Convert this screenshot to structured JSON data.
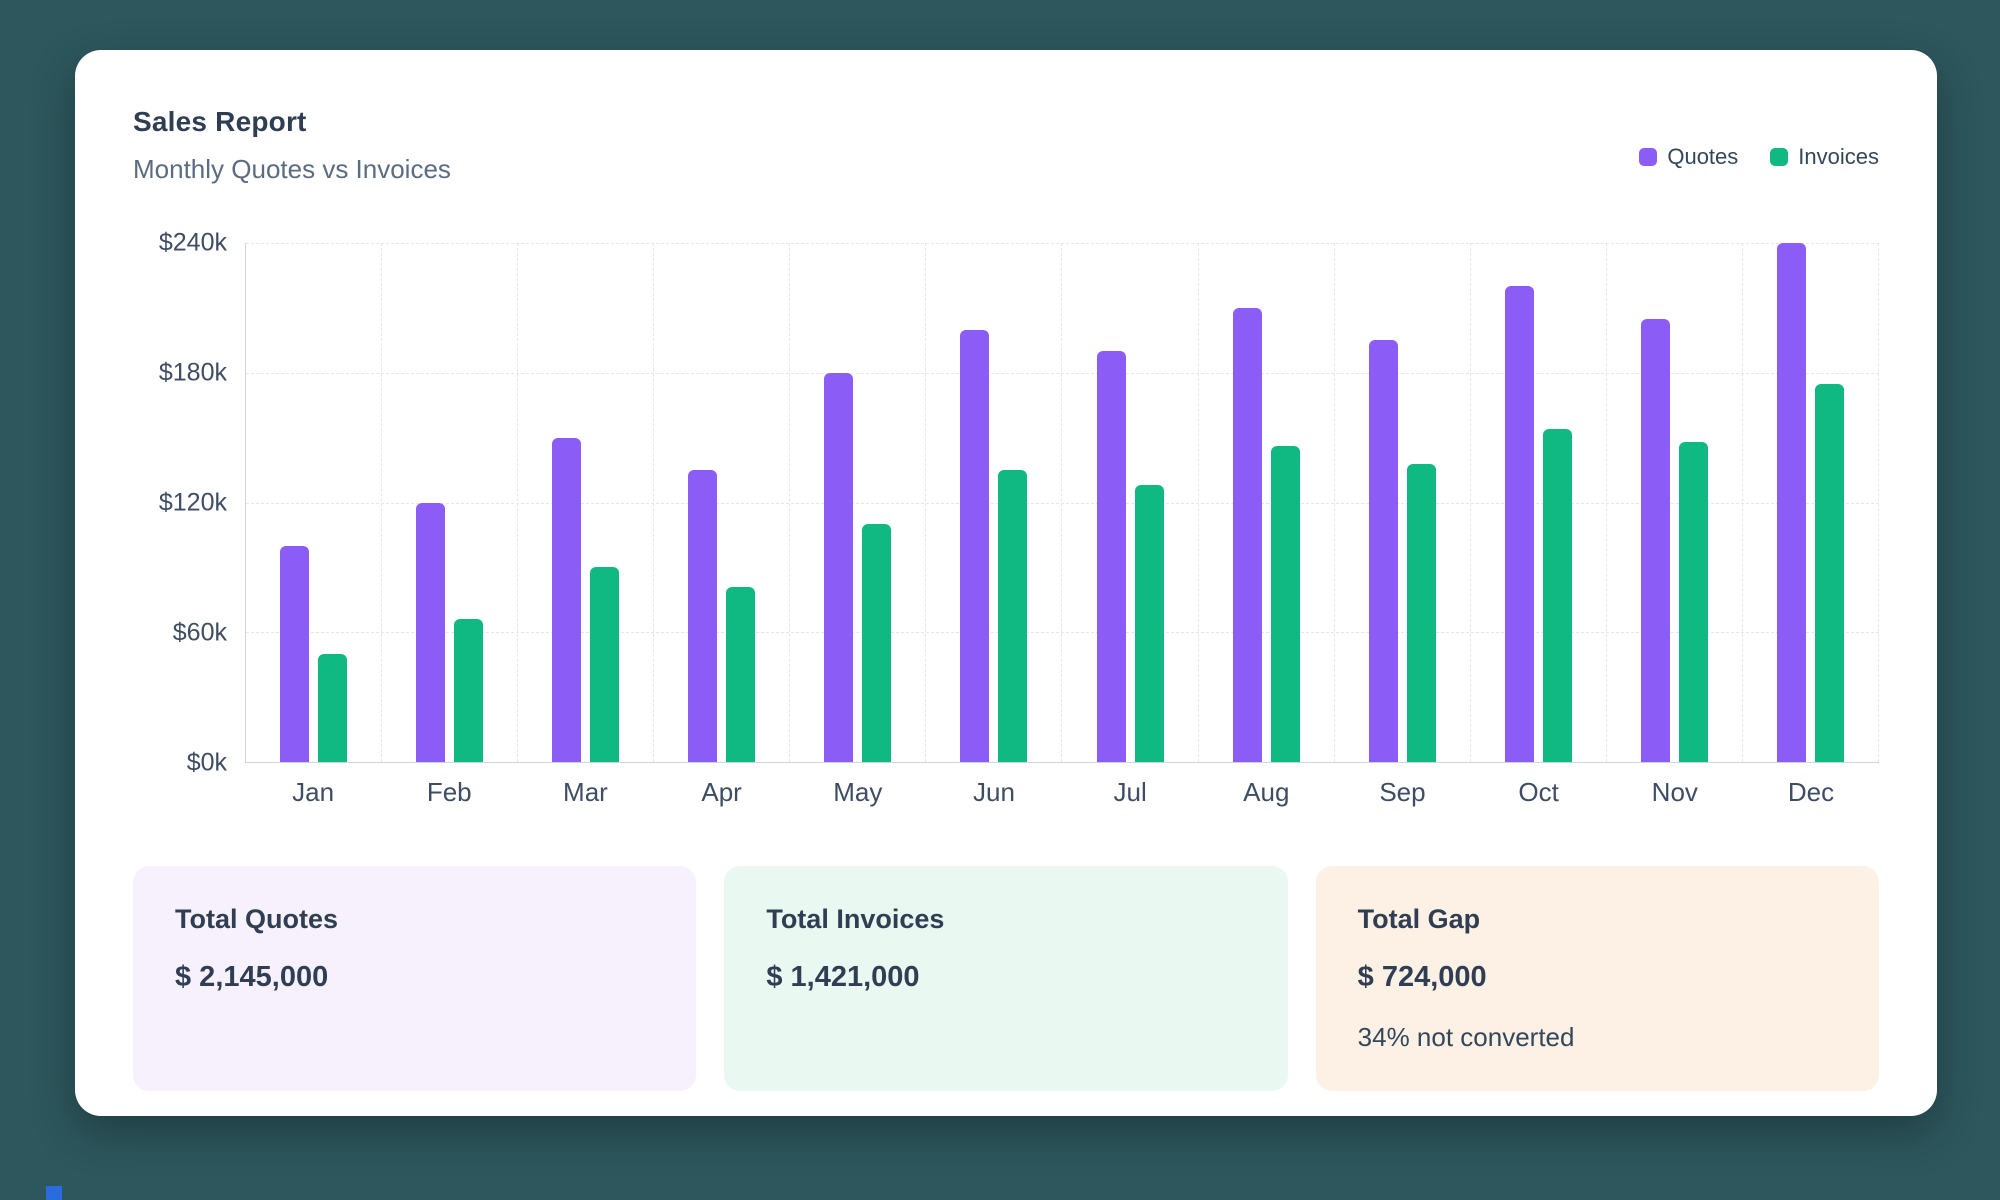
{
  "header": {
    "title": "Sales Report",
    "subtitle": "Monthly Quotes vs Invoices"
  },
  "legend": [
    {
      "label": "Quotes",
      "color": "#8b5cf6"
    },
    {
      "label": "Invoices",
      "color": "#10b981"
    }
  ],
  "chart_data": {
    "type": "bar",
    "title": "Sales Report",
    "subtitle": "Monthly Quotes vs Invoices",
    "categories": [
      "Jan",
      "Feb",
      "Mar",
      "Apr",
      "May",
      "Jun",
      "Jul",
      "Aug",
      "Sep",
      "Oct",
      "Nov",
      "Dec"
    ],
    "series": [
      {
        "name": "Quotes",
        "color": "#8b5cf6",
        "values": [
          100000,
          120000,
          150000,
          135000,
          180000,
          200000,
          190000,
          210000,
          195000,
          220000,
          205000,
          240000
        ]
      },
      {
        "name": "Invoices",
        "color": "#10b981",
        "values": [
          50000,
          66000,
          90000,
          81000,
          110000,
          135000,
          128000,
          146000,
          138000,
          154000,
          148000,
          175000
        ]
      }
    ],
    "xlabel": "",
    "ylabel": "",
    "ylim": [
      0,
      240000
    ],
    "yticks": [
      {
        "value": 0,
        "label": "$0k"
      },
      {
        "value": 60000,
        "label": "$60k"
      },
      {
        "value": 120000,
        "label": "$120k"
      },
      {
        "value": 180000,
        "label": "$180k"
      },
      {
        "value": 240000,
        "label": "$240k"
      }
    ],
    "grid": true,
    "legend_position": "top-right"
  },
  "summary_cards": [
    {
      "title": "Total Quotes",
      "value": "$ 2,145,000",
      "bg": "#f7f1fd"
    },
    {
      "title": "Total Invoices",
      "value": "$ 1,421,000",
      "bg": "#e9f8f1"
    },
    {
      "title": "Total Gap",
      "value": "$ 724,000",
      "note": "34% not converted",
      "bg": "#fdf1e6"
    }
  ]
}
